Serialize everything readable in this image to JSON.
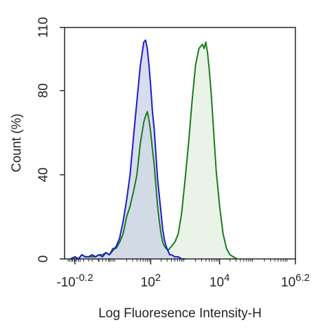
{
  "chart_data": {
    "type": "area",
    "xlabel": "Log Fluoresence Intensity-H",
    "ylabel": "Count  (%)",
    "x_scale": "log",
    "xlim": [
      -0.5,
      6.2
    ],
    "ylim": [
      0,
      110
    ],
    "x_ticks": [
      {
        "value": -0.2,
        "base": "-10",
        "exp": "-0.2"
      },
      {
        "value": 2,
        "base": "10",
        "exp": "2"
      },
      {
        "value": 4,
        "base": "10",
        "exp": "4"
      },
      {
        "value": 6.2,
        "base": "10",
        "exp": "6.2"
      }
    ],
    "y_ticks": [
      0,
      40,
      80,
      110
    ],
    "grid": false,
    "series": [
      {
        "color": "#1a1acc",
        "fill": "#c9d2e6",
        "x": [
          -0.33,
          -0.2,
          -0.1,
          0.0,
          0.1,
          0.2,
          0.3,
          0.4,
          0.5,
          0.6,
          0.7,
          0.8,
          0.9,
          1.0,
          1.1,
          1.2,
          1.3,
          1.4,
          1.5,
          1.6,
          1.7,
          1.8,
          1.85,
          1.9,
          1.95,
          2.0,
          2.05,
          2.1,
          2.15,
          2.2,
          2.25,
          2.3,
          2.35,
          2.4,
          2.45,
          2.5,
          2.55,
          2.6,
          2.7,
          2.8,
          2.9,
          3.0
        ],
        "values": [
          0,
          1,
          0,
          2,
          1,
          1,
          2,
          1,
          2,
          1,
          3,
          2,
          4,
          6,
          10,
          18,
          28,
          40,
          58,
          75,
          92,
          103,
          104,
          100,
          92,
          82,
          70,
          62,
          50,
          38,
          30,
          22,
          14,
          9,
          6,
          4,
          2,
          2,
          1,
          1,
          0,
          0
        ]
      },
      {
        "color": "#1a7a1a",
        "fill": "#e3efe0",
        "x": [
          -0.33,
          -0.2,
          -0.1,
          0.0,
          0.1,
          0.2,
          0.3,
          0.4,
          0.5,
          0.6,
          0.7,
          0.8,
          0.9,
          1.0,
          1.1,
          1.2,
          1.3,
          1.4,
          1.5,
          1.6,
          1.7,
          1.8,
          1.85,
          1.9,
          1.95,
          2.0,
          2.05,
          2.1,
          2.15,
          2.2,
          2.25,
          2.3,
          2.35,
          2.4,
          2.45,
          2.5,
          2.6,
          2.7,
          2.8,
          2.9,
          3.0,
          3.1,
          3.2,
          3.3,
          3.4,
          3.5,
          3.55,
          3.6,
          3.65,
          3.7,
          3.75,
          3.8,
          3.85,
          3.9,
          4.0,
          4.1,
          4.2,
          4.3,
          4.4,
          4.5
        ],
        "values": [
          0,
          1,
          0,
          2,
          1,
          1,
          1,
          1,
          2,
          2,
          3,
          2,
          5,
          5,
          8,
          12,
          20,
          25,
          32,
          40,
          55,
          65,
          68,
          70,
          66,
          60,
          52,
          45,
          35,
          25,
          18,
          12,
          8,
          6,
          5,
          4,
          6,
          8,
          12,
          22,
          38,
          55,
          75,
          92,
          100,
          102,
          100,
          103,
          98,
          90,
          80,
          68,
          55,
          42,
          25,
          12,
          5,
          2,
          1,
          0
        ]
      }
    ]
  }
}
